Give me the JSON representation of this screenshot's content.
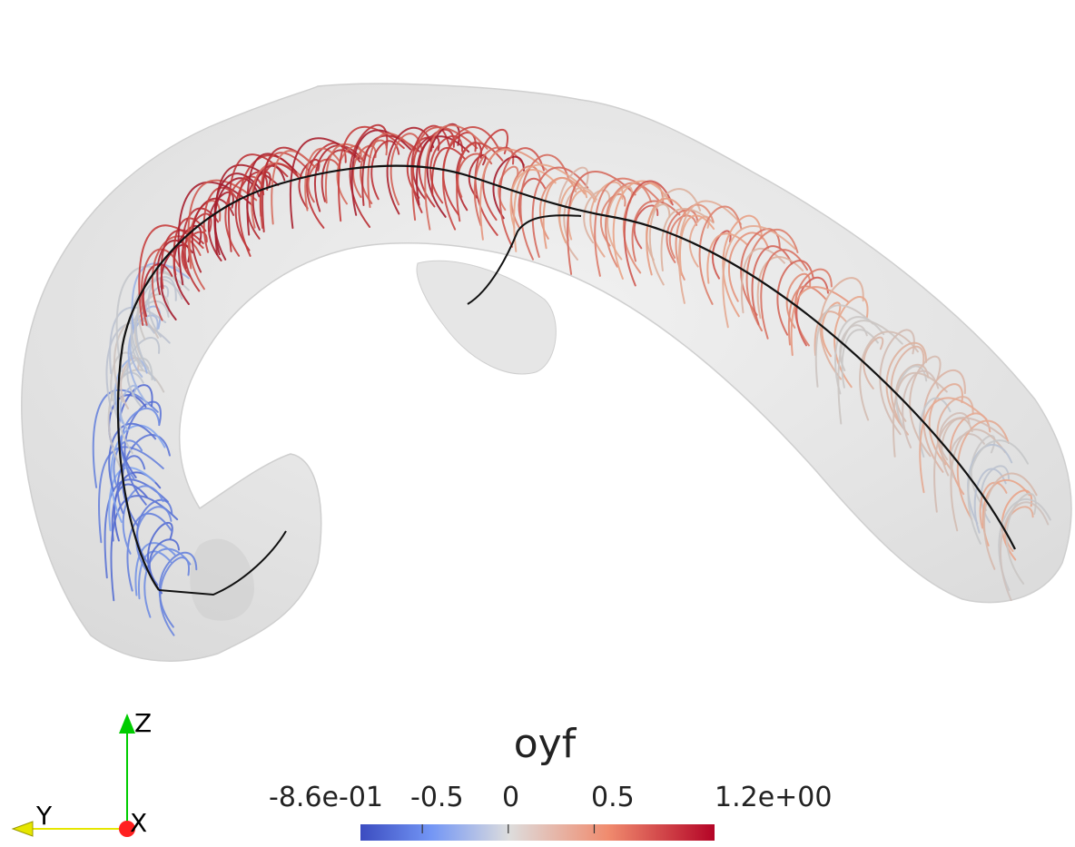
{
  "scene": {
    "description_free": true,
    "surface_color": "#dcdcdc",
    "centerline_color": "#111111"
  },
  "colorbar": {
    "title": "oyf",
    "min_label": "-8.6e-01",
    "max_label": "1.2e+00",
    "ticks": [
      "-0.5",
      "0",
      "0.5"
    ],
    "min": -0.86,
    "max": 1.2,
    "tick_values": [
      -0.5,
      0,
      0.5
    ],
    "colors": [
      "#3b4cc0",
      "#aac7fd",
      "#dddddd",
      "#f7b89c",
      "#b40426"
    ]
  },
  "axes_widget": {
    "z_label": "Z",
    "y_label": "Y",
    "x_label": "X",
    "z_color": "#00cc00",
    "y_color": "#e6e600",
    "x_color": "#ff2020"
  }
}
